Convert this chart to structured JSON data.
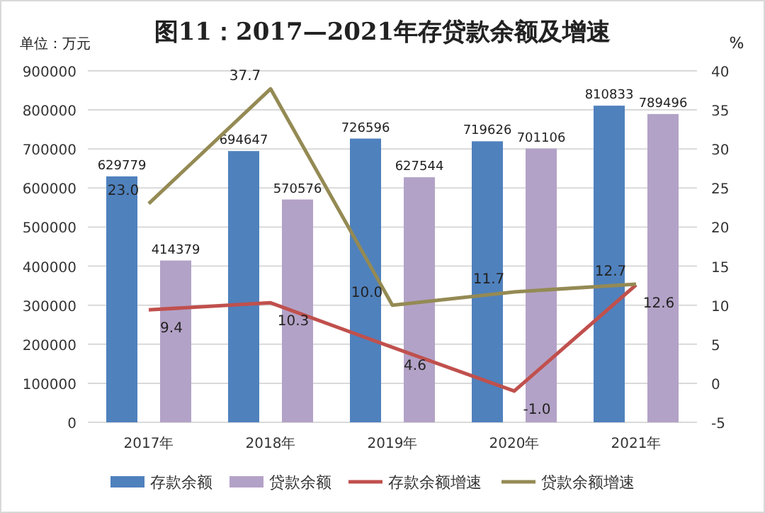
{
  "chart_data": {
    "type": "bar",
    "title": "图11：2017—2021年存贷款余额及增速",
    "ylabel": "单位：万元",
    "y2label": "%",
    "categories": [
      "2017年",
      "2018年",
      "2019年",
      "2020年",
      "2021年"
    ],
    "series": [
      {
        "name": "存款余额",
        "color": "#4f81bd",
        "values": [
          629779,
          694647,
          726596,
          719626,
          810833
        ]
      },
      {
        "name": "贷款余额",
        "color": "#b3a2c7",
        "values": [
          414379,
          570576,
          627544,
          701106,
          789496
        ]
      },
      {
        "name": "存款余额增速",
        "type": "line",
        "axis": "y2",
        "color": "#c0504d",
        "values": [
          9.4,
          10.3,
          4.6,
          -1.0,
          12.6
        ],
        "value_labels": [
          "9.4",
          "10.3",
          "4.6",
          "-1.0",
          "12.6"
        ]
      },
      {
        "name": "贷款余额增速",
        "type": "line",
        "axis": "y2",
        "color": "#948a54",
        "values": [
          23.0,
          37.7,
          10.0,
          11.7,
          12.7
        ],
        "value_labels": [
          "23.0",
          "37.7",
          "10.0",
          "11.7",
          "12.7"
        ]
      }
    ],
    "ylim": [
      0,
      900000
    ],
    "yticks": [
      0,
      100000,
      200000,
      300000,
      400000,
      500000,
      600000,
      700000,
      800000,
      900000
    ],
    "y2lim": [
      -5,
      40
    ],
    "y2ticks": [
      -5,
      0,
      5,
      10,
      15,
      20,
      25,
      30,
      35,
      40
    ],
    "grid": "y",
    "legend": "bottom",
    "data_labels": true,
    "marker": "none"
  }
}
